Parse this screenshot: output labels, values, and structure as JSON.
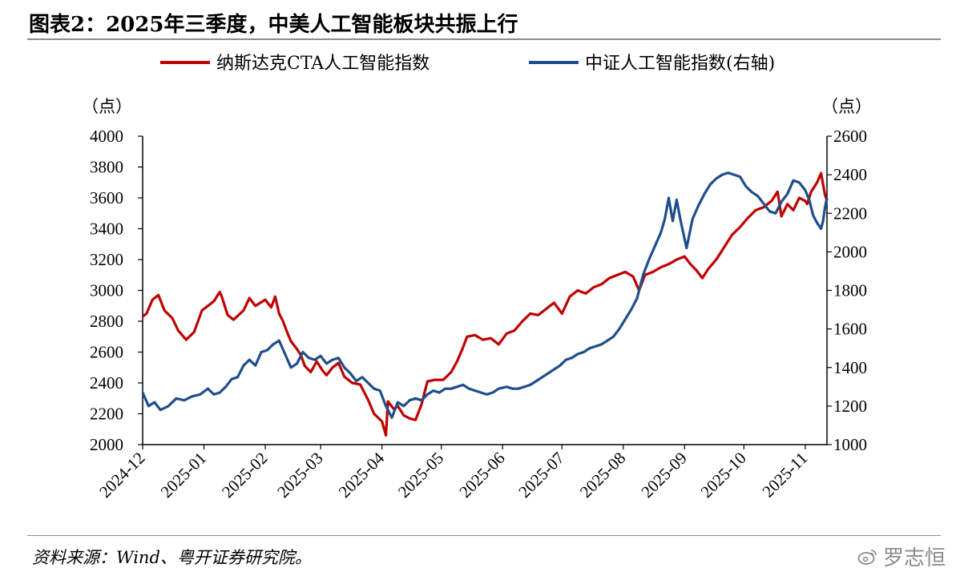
{
  "header": {
    "title": "图表2：2025年三季度，中美人工智能板块共振上行"
  },
  "footer": {
    "source": "资料来源：Wind、粤开证券研究院。",
    "watermark": "罗志恒",
    "watermark_icon": "weibo-icon"
  },
  "colors": {
    "red_series": "#c00000",
    "blue_series": "#1f4e8c",
    "rule": "#8c8c8c"
  },
  "chart_data": {
    "type": "line",
    "title": "图表2：2025年三季度，中美人工智能板块共振上行",
    "legend_placement": "top",
    "grid": false,
    "y_left": {
      "unit": "（点）",
      "range": [
        2000,
        4000
      ],
      "ticks": [
        "2000",
        "2200",
        "2400",
        "2600",
        "2800",
        "3000",
        "3200",
        "3400",
        "3600",
        "3800",
        "4000"
      ]
    },
    "y_right": {
      "unit": "（点）",
      "range": [
        1000,
        2600
      ],
      "ticks": [
        "1000",
        "1200",
        "1400",
        "1600",
        "1800",
        "2000",
        "2200",
        "2400",
        "2600"
      ]
    },
    "x": {
      "type": "date",
      "range": [
        "2024-12-01",
        "2025-11-12"
      ],
      "ticks": [
        "2024-12",
        "2025-01",
        "2025-02",
        "2025-03",
        "2025-04",
        "2025-05",
        "2025-06",
        "2025-07",
        "2025-08",
        "2025-09",
        "2025-10",
        "2025-11"
      ]
    },
    "series": [
      {
        "name": "纳斯达克CTA人工智能指数",
        "axis": "left",
        "color": "#c00000",
        "points": [
          [
            "2024-12-01",
            2830
          ],
          [
            "2024-12-03",
            2850
          ],
          [
            "2024-12-06",
            2940
          ],
          [
            "2024-12-09",
            2970
          ],
          [
            "2024-12-12",
            2870
          ],
          [
            "2024-12-16",
            2820
          ],
          [
            "2024-12-19",
            2740
          ],
          [
            "2024-12-23",
            2680
          ],
          [
            "2024-12-27",
            2730
          ],
          [
            "2024-12-31",
            2870
          ],
          [
            "2025-01-03",
            2900
          ],
          [
            "2025-01-06",
            2930
          ],
          [
            "2025-01-09",
            2990
          ],
          [
            "2025-01-10",
            2960
          ],
          [
            "2025-01-13",
            2840
          ],
          [
            "2025-01-16",
            2810
          ],
          [
            "2025-01-21",
            2870
          ],
          [
            "2025-01-24",
            2950
          ],
          [
            "2025-01-27",
            2900
          ],
          [
            "2025-02-01",
            2940
          ],
          [
            "2025-02-04",
            2890
          ],
          [
            "2025-02-06",
            2960
          ],
          [
            "2025-02-08",
            2850
          ],
          [
            "2025-02-10",
            2800
          ],
          [
            "2025-02-12",
            2730
          ],
          [
            "2025-02-14",
            2670
          ],
          [
            "2025-02-17",
            2620
          ],
          [
            "2025-02-19",
            2580
          ],
          [
            "2025-02-21",
            2510
          ],
          [
            "2025-02-24",
            2470
          ],
          [
            "2025-02-27",
            2540
          ],
          [
            "2025-03-02",
            2480
          ],
          [
            "2025-03-04",
            2450
          ],
          [
            "2025-03-07",
            2500
          ],
          [
            "2025-03-10",
            2530
          ],
          [
            "2025-03-13",
            2440
          ],
          [
            "2025-03-17",
            2400
          ],
          [
            "2025-03-21",
            2390
          ],
          [
            "2025-03-25",
            2290
          ],
          [
            "2025-03-28",
            2200
          ],
          [
            "2025-04-01",
            2150
          ],
          [
            "2025-04-03",
            2060
          ],
          [
            "2025-04-04",
            2280
          ],
          [
            "2025-04-07",
            2230
          ],
          [
            "2025-04-09",
            2250
          ],
          [
            "2025-04-12",
            2190
          ],
          [
            "2025-04-15",
            2170
          ],
          [
            "2025-04-18",
            2160
          ],
          [
            "2025-04-21",
            2260
          ],
          [
            "2025-04-24",
            2410
          ],
          [
            "2025-04-28",
            2420
          ],
          [
            "2025-05-02",
            2420
          ],
          [
            "2025-05-06",
            2470
          ],
          [
            "2025-05-09",
            2540
          ],
          [
            "2025-05-12",
            2630
          ],
          [
            "2025-05-14",
            2700
          ],
          [
            "2025-05-18",
            2710
          ],
          [
            "2025-05-22",
            2680
          ],
          [
            "2025-05-26",
            2690
          ],
          [
            "2025-05-30",
            2650
          ],
          [
            "2025-06-03",
            2720
          ],
          [
            "2025-06-07",
            2740
          ],
          [
            "2025-06-11",
            2800
          ],
          [
            "2025-06-15",
            2850
          ],
          [
            "2025-06-19",
            2840
          ],
          [
            "2025-06-23",
            2880
          ],
          [
            "2025-06-27",
            2920
          ],
          [
            "2025-07-01",
            2850
          ],
          [
            "2025-07-05",
            2960
          ],
          [
            "2025-07-09",
            3000
          ],
          [
            "2025-07-13",
            2980
          ],
          [
            "2025-07-17",
            3020
          ],
          [
            "2025-07-21",
            3040
          ],
          [
            "2025-07-25",
            3080
          ],
          [
            "2025-07-29",
            3100
          ],
          [
            "2025-08-02",
            3120
          ],
          [
            "2025-08-06",
            3090
          ],
          [
            "2025-08-09",
            3000
          ],
          [
            "2025-08-12",
            3100
          ],
          [
            "2025-08-16",
            3120
          ],
          [
            "2025-08-20",
            3150
          ],
          [
            "2025-08-24",
            3170
          ],
          [
            "2025-08-28",
            3200
          ],
          [
            "2025-09-01",
            3220
          ],
          [
            "2025-09-04",
            3170
          ],
          [
            "2025-09-07",
            3130
          ],
          [
            "2025-09-10",
            3080
          ],
          [
            "2025-09-13",
            3140
          ],
          [
            "2025-09-17",
            3200
          ],
          [
            "2025-09-21",
            3280
          ],
          [
            "2025-09-25",
            3360
          ],
          [
            "2025-09-29",
            3410
          ],
          [
            "2025-10-03",
            3470
          ],
          [
            "2025-10-07",
            3520
          ],
          [
            "2025-10-11",
            3540
          ],
          [
            "2025-10-15",
            3580
          ],
          [
            "2025-10-18",
            3640
          ],
          [
            "2025-10-20",
            3480
          ],
          [
            "2025-10-23",
            3560
          ],
          [
            "2025-10-26",
            3520
          ],
          [
            "2025-10-29",
            3600
          ],
          [
            "2025-11-01",
            3580
          ],
          [
            "2025-11-02",
            3560
          ],
          [
            "2025-11-04",
            3640
          ],
          [
            "2025-11-07",
            3700
          ],
          [
            "2025-11-09",
            3760
          ],
          [
            "2025-11-11",
            3620
          ],
          [
            "2025-11-12",
            3580
          ]
        ]
      },
      {
        "name": "中证人工智能指数(右轴)",
        "axis": "right",
        "color": "#1f4e8c",
        "points": [
          [
            "2024-12-01",
            1270
          ],
          [
            "2024-12-04",
            1200
          ],
          [
            "2024-12-07",
            1220
          ],
          [
            "2024-12-10",
            1180
          ],
          [
            "2024-12-14",
            1200
          ],
          [
            "2024-12-18",
            1240
          ],
          [
            "2024-12-22",
            1230
          ],
          [
            "2024-12-26",
            1250
          ],
          [
            "2024-12-30",
            1260
          ],
          [
            "2025-01-03",
            1290
          ],
          [
            "2025-01-06",
            1260
          ],
          [
            "2025-01-09",
            1270
          ],
          [
            "2025-01-12",
            1300
          ],
          [
            "2025-01-15",
            1340
          ],
          [
            "2025-01-18",
            1350
          ],
          [
            "2025-01-21",
            1410
          ],
          [
            "2025-01-24",
            1440
          ],
          [
            "2025-01-27",
            1410
          ],
          [
            "2025-01-30",
            1480
          ],
          [
            "2025-02-02",
            1490
          ],
          [
            "2025-02-05",
            1520
          ],
          [
            "2025-02-08",
            1540
          ],
          [
            "2025-02-11",
            1470
          ],
          [
            "2025-02-14",
            1400
          ],
          [
            "2025-02-17",
            1420
          ],
          [
            "2025-02-20",
            1480
          ],
          [
            "2025-02-23",
            1450
          ],
          [
            "2025-02-26",
            1440
          ],
          [
            "2025-03-01",
            1460
          ],
          [
            "2025-03-04",
            1420
          ],
          [
            "2025-03-07",
            1440
          ],
          [
            "2025-03-10",
            1450
          ],
          [
            "2025-03-13",
            1400
          ],
          [
            "2025-03-16",
            1370
          ],
          [
            "2025-03-19",
            1330
          ],
          [
            "2025-03-22",
            1350
          ],
          [
            "2025-03-25",
            1320
          ],
          [
            "2025-03-28",
            1290
          ],
          [
            "2025-03-31",
            1280
          ],
          [
            "2025-04-03",
            1200
          ],
          [
            "2025-04-06",
            1140
          ],
          [
            "2025-04-09",
            1220
          ],
          [
            "2025-04-12",
            1200
          ],
          [
            "2025-04-15",
            1230
          ],
          [
            "2025-04-18",
            1240
          ],
          [
            "2025-04-21",
            1230
          ],
          [
            "2025-04-24",
            1260
          ],
          [
            "2025-04-27",
            1280
          ],
          [
            "2025-04-30",
            1270
          ],
          [
            "2025-05-03",
            1290
          ],
          [
            "2025-05-06",
            1290
          ],
          [
            "2025-05-09",
            1300
          ],
          [
            "2025-05-12",
            1310
          ],
          [
            "2025-05-15",
            1290
          ],
          [
            "2025-05-18",
            1280
          ],
          [
            "2025-05-21",
            1270
          ],
          [
            "2025-05-24",
            1260
          ],
          [
            "2025-05-27",
            1270
          ],
          [
            "2025-05-30",
            1290
          ],
          [
            "2025-06-03",
            1300
          ],
          [
            "2025-06-06",
            1290
          ],
          [
            "2025-06-09",
            1290
          ],
          [
            "2025-06-12",
            1300
          ],
          [
            "2025-06-15",
            1310
          ],
          [
            "2025-06-18",
            1330
          ],
          [
            "2025-06-21",
            1350
          ],
          [
            "2025-06-24",
            1370
          ],
          [
            "2025-06-27",
            1390
          ],
          [
            "2025-06-30",
            1410
          ],
          [
            "2025-07-03",
            1440
          ],
          [
            "2025-07-06",
            1450
          ],
          [
            "2025-07-09",
            1470
          ],
          [
            "2025-07-12",
            1480
          ],
          [
            "2025-07-15",
            1500
          ],
          [
            "2025-07-18",
            1510
          ],
          [
            "2025-07-21",
            1520
          ],
          [
            "2025-07-24",
            1540
          ],
          [
            "2025-07-27",
            1560
          ],
          [
            "2025-07-30",
            1600
          ],
          [
            "2025-08-02",
            1650
          ],
          [
            "2025-08-05",
            1700
          ],
          [
            "2025-08-08",
            1760
          ],
          [
            "2025-08-11",
            1880
          ],
          [
            "2025-08-14",
            1960
          ],
          [
            "2025-08-17",
            2030
          ],
          [
            "2025-08-20",
            2100
          ],
          [
            "2025-08-22",
            2170
          ],
          [
            "2025-08-24",
            2280
          ],
          [
            "2025-08-26",
            2160
          ],
          [
            "2025-08-28",
            2270
          ],
          [
            "2025-08-30",
            2160
          ],
          [
            "2025-09-02",
            2020
          ],
          [
            "2025-09-05",
            2170
          ],
          [
            "2025-09-08",
            2240
          ],
          [
            "2025-09-11",
            2300
          ],
          [
            "2025-09-14",
            2350
          ],
          [
            "2025-09-17",
            2380
          ],
          [
            "2025-09-20",
            2400
          ],
          [
            "2025-09-23",
            2410
          ],
          [
            "2025-09-26",
            2400
          ],
          [
            "2025-09-29",
            2390
          ],
          [
            "2025-10-02",
            2340
          ],
          [
            "2025-10-05",
            2310
          ],
          [
            "2025-10-08",
            2290
          ],
          [
            "2025-10-11",
            2250
          ],
          [
            "2025-10-14",
            2210
          ],
          [
            "2025-10-17",
            2200
          ],
          [
            "2025-10-20",
            2260
          ],
          [
            "2025-10-23",
            2300
          ],
          [
            "2025-10-26",
            2370
          ],
          [
            "2025-10-29",
            2360
          ],
          [
            "2025-11-01",
            2320
          ],
          [
            "2025-11-03",
            2270
          ],
          [
            "2025-11-05",
            2190
          ],
          [
            "2025-11-07",
            2150
          ],
          [
            "2025-11-09",
            2120
          ],
          [
            "2025-11-10",
            2160
          ],
          [
            "2025-11-11",
            2230
          ],
          [
            "2025-11-12",
            2280
          ]
        ]
      }
    ]
  }
}
